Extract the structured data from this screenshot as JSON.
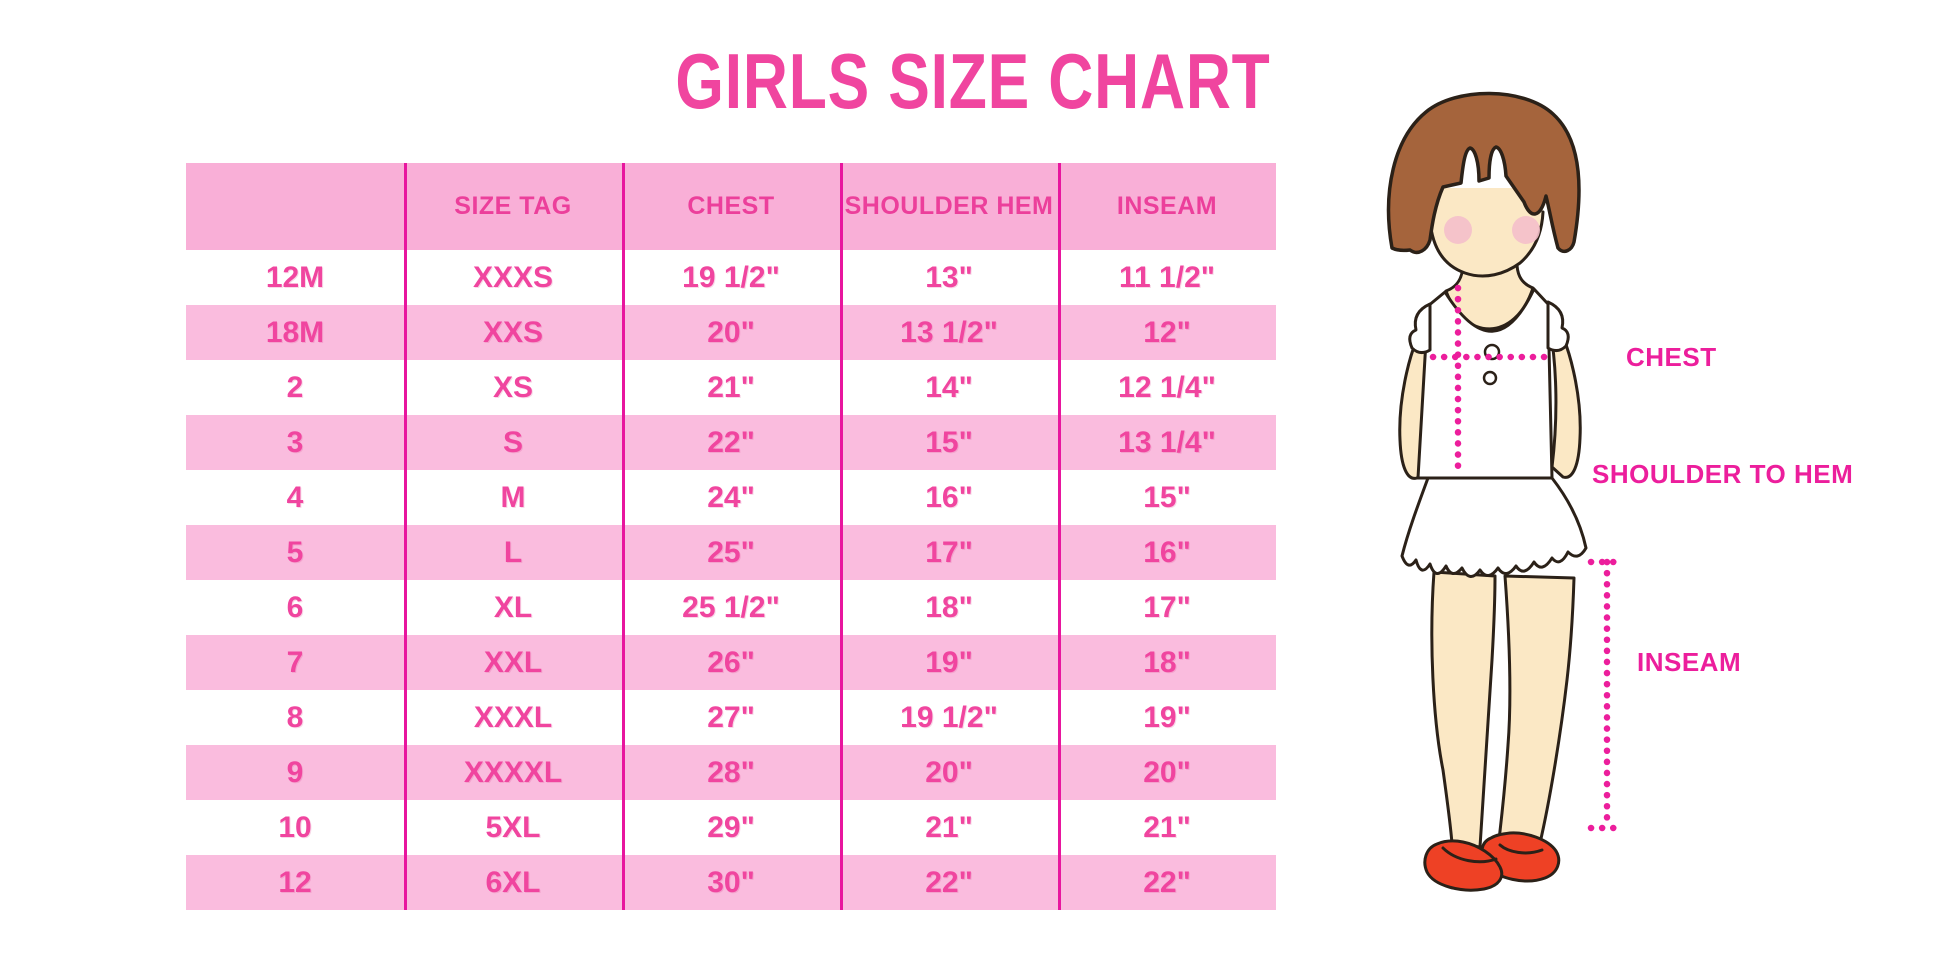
{
  "title": "GIRLS SIZE CHART",
  "figure_labels": {
    "chest": "CHEST",
    "shoulder_to_hem": "SHOULDER TO HEM",
    "inseam": "INSEAM"
  },
  "colors": {
    "title_pink": "#F0459F",
    "header_bg": "#F9AFD7",
    "row_alt_bg": "#FABCDE",
    "divider_magenta": "#E8169E",
    "cell_text": "#F0459F",
    "label_magenta": "#EC1E9C",
    "hair_brown": "#A5643C",
    "skin": "#FBE8C5",
    "blush": "#F4BFCA",
    "shoe_red": "#EE4125",
    "outline": "#2B2118"
  },
  "chart_data": {
    "type": "table",
    "title": "GIRLS SIZE CHART",
    "columns": [
      "",
      "SIZE TAG",
      "CHEST",
      "SHOULDER HEM",
      "INSEAM"
    ],
    "rows": [
      [
        "12M",
        "XXXS",
        "19 1/2\"",
        "13\"",
        "11 1/2\""
      ],
      [
        "18M",
        "XXS",
        "20\"",
        "13 1/2\"",
        "12\""
      ],
      [
        "2",
        "XS",
        "21\"",
        "14\"",
        "12 1/4\""
      ],
      [
        "3",
        "S",
        "22\"",
        "15\"",
        "13 1/4\""
      ],
      [
        "4",
        "M",
        "24\"",
        "16\"",
        "15\""
      ],
      [
        "5",
        "L",
        "25\"",
        "17\"",
        "16\""
      ],
      [
        "6",
        "XL",
        "25 1/2\"",
        "18\"",
        "17\""
      ],
      [
        "7",
        "XXL",
        "26\"",
        "19\"",
        "18\""
      ],
      [
        "8",
        "XXXL",
        "27\"",
        "19 1/2\"",
        "19\""
      ],
      [
        "9",
        "XXXXL",
        "28\"",
        "20\"",
        "20\""
      ],
      [
        "10",
        "5XL",
        "29\"",
        "21\"",
        "21\""
      ],
      [
        "12",
        "6XL",
        "30\"",
        "22\"",
        "22\""
      ]
    ]
  }
}
